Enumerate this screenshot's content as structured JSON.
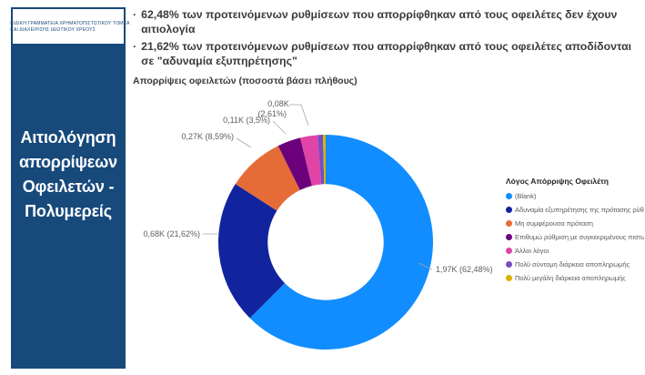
{
  "theme": {
    "navy": "#17497B",
    "text_dark": "#3B3B3B",
    "label_gray": "#605E5C",
    "leader_gray": "#A6A6A6"
  },
  "logo": {
    "line1": "ΕΙΔΙΚΗ ΓΡΑΜΜΑΤΕΙΑ ΧΡΗΜΑΤΟΠΙΣΤΩΤΙΚΟΥ ΤΟΜΕΑ",
    "line2": "ΚΑΙ ΔΙΑΧΕΙΡΙΣΗΣ ΙΔΙΩΤΙΚΟΥ ΧΡΕΟΥΣ"
  },
  "sidebar": {
    "title": "Αιτιολόγηση απορρίψεων Οφειλετών - Πολυμερείς"
  },
  "header": {
    "bullets": [
      {
        "marker": "·",
        "text": "62,48% των προτεινόμενων ρυθμίσεων που απορρίφθηκαν από τους οφειλέτες δεν έχουν αιτιολογία"
      },
      {
        "marker": "·",
        "text": "21,62% των προτεινόμενων ρυθμίσεων που απορρίφθηκαν από τους οφειλέτες αποδίδονται σε \"αδυναμία εξυπηρέτησης\""
      }
    ]
  },
  "chart_data": {
    "type": "pie",
    "subtype": "donut",
    "title": "Απορρίψεις οφειλετών (ποσοστά βάσει πλήθους)",
    "legend_title": "Λόγος Απόρριψης Οφειλέτη",
    "legend_position": "right",
    "donut_hole_ratio": 0.54,
    "categories": [
      "(Blank)",
      "Αδυναμία εξυπηρέτησης της πρότασης ρύθμισ",
      "Μη συμφέρουσα πρόταση",
      "Επιθυμώ ρύθμιση με συγκεκριμένους πιστωτές",
      "Άλλοι λόγοι",
      "Πολύ σύντομη διάρκεια αποπληρωμής",
      "Πολύ μεγάλη διάρκεια αποπληρωμής"
    ],
    "values_thousands": [
      1.97,
      0.68,
      0.27,
      0.11,
      0.08,
      0.025,
      0.012
    ],
    "percentages": [
      62.48,
      21.62,
      8.59,
      3.5,
      2.61,
      0.79,
      0.41
    ],
    "colors": [
      "#118DFF",
      "#12239E",
      "#E66C37",
      "#6B007B",
      "#E044A7",
      "#744EC2",
      "#D9B300"
    ],
    "callouts": {
      "c0": "1,97K (62,48%)",
      "c1": "0,68K (21,62%)",
      "c2": "0,27K (8,59%)",
      "c3": "0,11K (3,5%)",
      "c4a": "0,08K",
      "c4b": "(2,61%)"
    }
  }
}
